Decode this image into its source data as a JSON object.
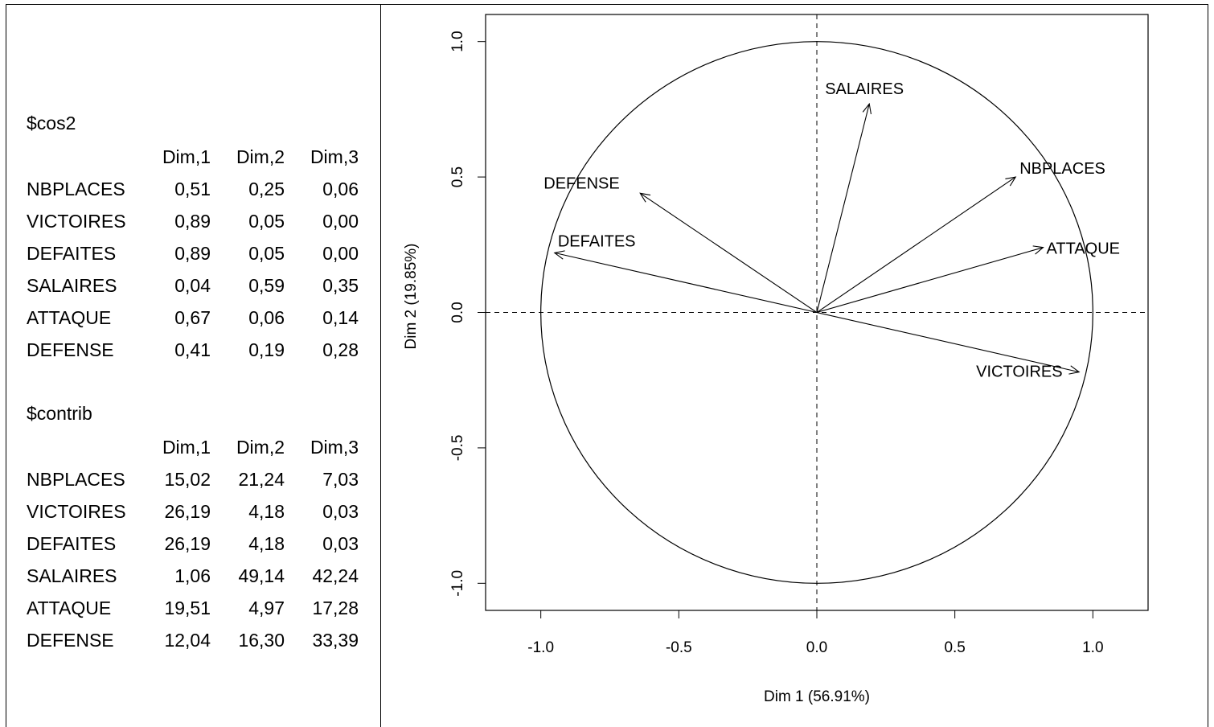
{
  "tables": [
    {
      "title": "$cos2",
      "columns": [
        "Dim,1",
        "Dim,2",
        "Dim,3"
      ],
      "rows": [
        {
          "label": "NBPLACES",
          "values": [
            "0,51",
            "0,25",
            "0,06"
          ]
        },
        {
          "label": "VICTOIRES",
          "values": [
            "0,89",
            "0,05",
            "0,00"
          ]
        },
        {
          "label": "DEFAITES",
          "values": [
            "0,89",
            "0,05",
            "0,00"
          ]
        },
        {
          "label": "SALAIRES",
          "values": [
            "0,04",
            "0,59",
            "0,35"
          ]
        },
        {
          "label": "ATTAQUE",
          "values": [
            "0,67",
            "0,06",
            "0,14"
          ]
        },
        {
          "label": "DEFENSE",
          "values": [
            "0,41",
            "0,19",
            "0,28"
          ]
        }
      ]
    },
    {
      "title": "$contrib",
      "columns": [
        "Dim,1",
        "Dim,2",
        "Dim,3"
      ],
      "rows": [
        {
          "label": "NBPLACES",
          "values": [
            "15,02",
            "21,24",
            "7,03"
          ]
        },
        {
          "label": "VICTOIRES",
          "values": [
            "26,19",
            "4,18",
            "0,03"
          ]
        },
        {
          "label": "DEFAITES",
          "values": [
            "26,19",
            "4,18",
            "0,03"
          ]
        },
        {
          "label": "SALAIRES",
          "values": [
            "1,06",
            "49,14",
            "42,24"
          ]
        },
        {
          "label": "ATTAQUE",
          "values": [
            "19,51",
            "4,97",
            "17,28"
          ]
        },
        {
          "label": "DEFENSE",
          "values": [
            "12,04",
            "16,30",
            "33,39"
          ]
        }
      ]
    }
  ],
  "chart_data": {
    "type": "scatter",
    "subtype": "correlation-circle",
    "xlabel": "Dim 1 (56.91%)",
    "ylabel": "Dim 2 (19.85%)",
    "xlim": [
      -1.2,
      1.2
    ],
    "ylim": [
      -1.1,
      1.1
    ],
    "xticks": [
      -1.0,
      -0.5,
      0.0,
      0.5,
      1.0
    ],
    "yticks": [
      -1.0,
      -0.5,
      0.0,
      0.5,
      1.0
    ],
    "xtick_labels": [
      "-1.0",
      "-0.5",
      "0.0",
      "0.5",
      "1.0"
    ],
    "ytick_labels": [
      "-1.0",
      "-0.5",
      "0.0",
      "0.5",
      "1.0"
    ],
    "unit_circle_radius": 1.0,
    "reference_lines": {
      "x": 0,
      "y": 0,
      "style": "dashed"
    },
    "vectors": [
      {
        "name": "SALAIRES",
        "x": 0.19,
        "y": 0.77
      },
      {
        "name": "NBPLACES",
        "x": 0.72,
        "y": 0.5
      },
      {
        "name": "DEFENSE",
        "x": -0.64,
        "y": 0.44
      },
      {
        "name": "DEFAITES",
        "x": -0.95,
        "y": 0.22
      },
      {
        "name": "ATTAQUE",
        "x": 0.82,
        "y": 0.24
      },
      {
        "name": "VICTOIRES",
        "x": 0.95,
        "y": -0.22
      }
    ],
    "grid": false
  }
}
